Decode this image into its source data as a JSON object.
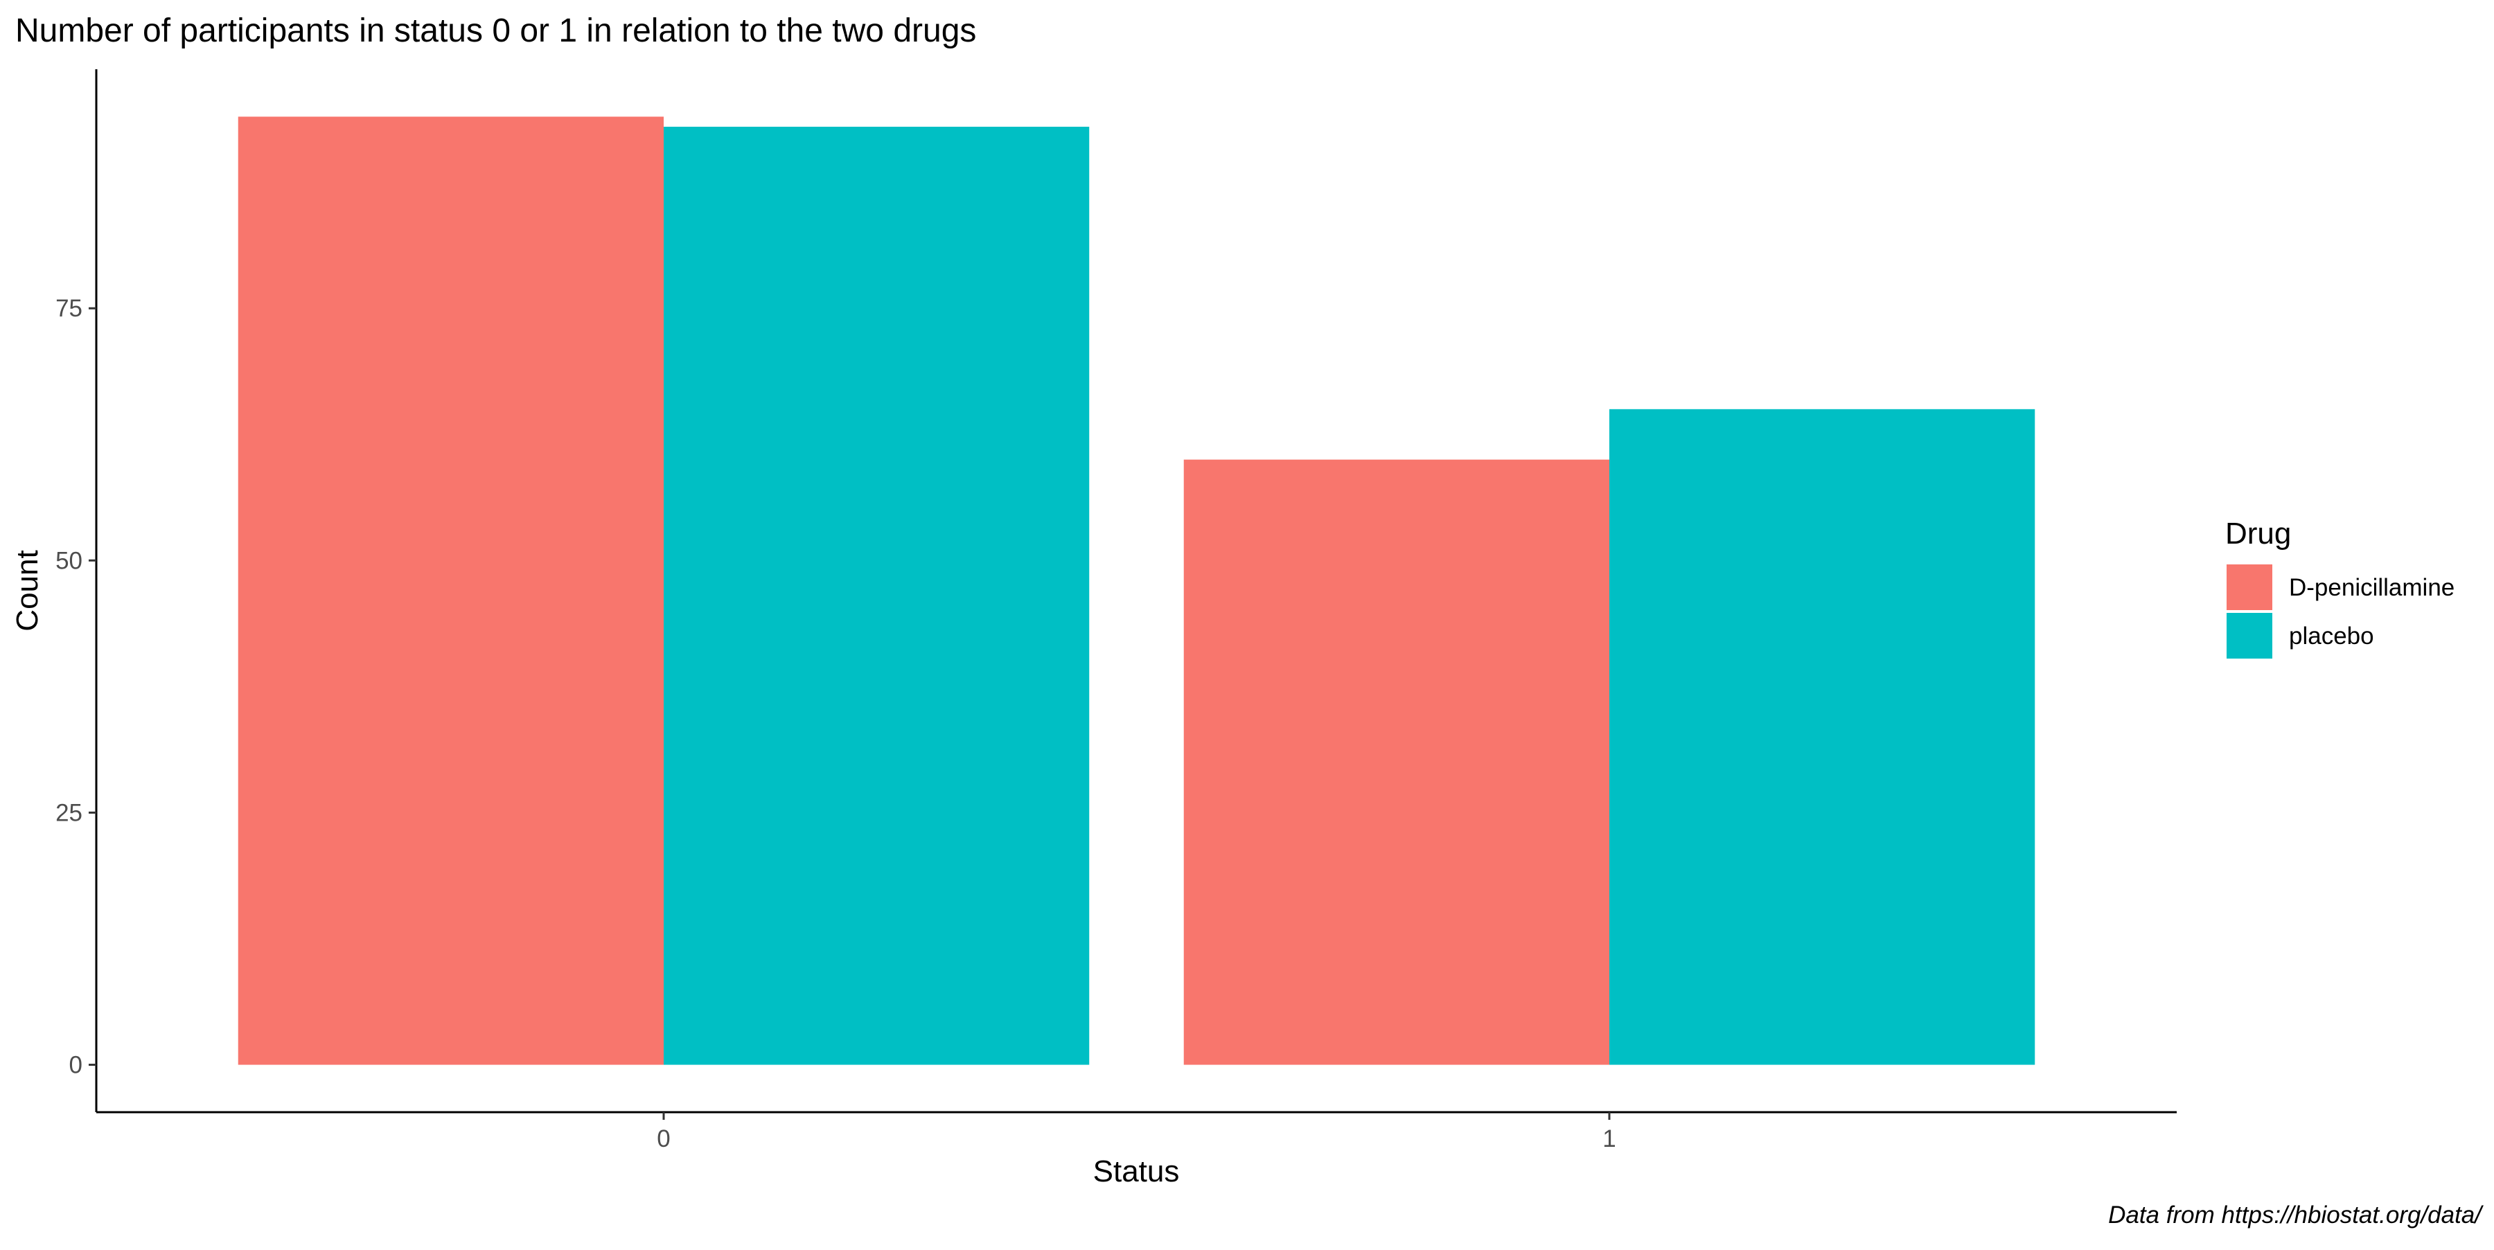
{
  "chart_data": {
    "type": "bar",
    "title": "Number of participants in status 0 or 1 in relation to the two drugs",
    "xlabel": "Status",
    "ylabel": "Count",
    "categories": [
      "0",
      "1"
    ],
    "series": [
      {
        "name": "D-penicillamine",
        "color": "#F8766D",
        "values": [
          94,
          60
        ]
      },
      {
        "name": "placebo",
        "color": "#00BFC4",
        "values": [
          93,
          65
        ]
      }
    ],
    "yticks": [
      0,
      25,
      50,
      75
    ],
    "ylim": [
      -4.7,
      98.7
    ],
    "grid": false,
    "legend": {
      "title": "Drug",
      "position": "right"
    },
    "caption": "Data from https://hbiostat.org/data/"
  }
}
